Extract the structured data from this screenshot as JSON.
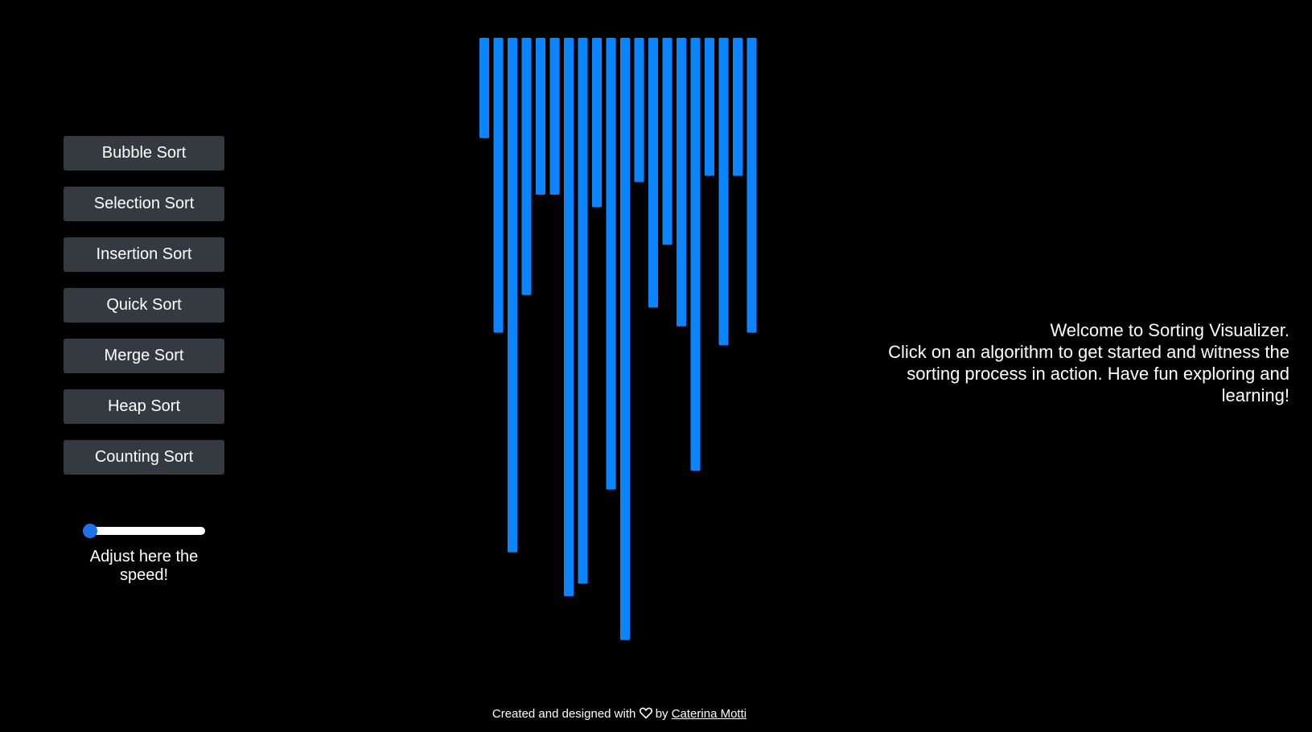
{
  "sidebar": {
    "buttons": [
      "Bubble Sort",
      "Selection Sort",
      "Insertion Sort",
      "Quick Sort",
      "Merge Sort",
      "Heap Sort",
      "Counting Sort"
    ]
  },
  "speed": {
    "label": "Adjust here the speed!",
    "value_fraction": 0.0
  },
  "welcome": {
    "line1": "Welcome to Sorting Visualizer.",
    "line2": "Click on an algorithm to get started and witness the sorting process in action. Have fun exploring and learning!"
  },
  "footer": {
    "prefix": "Created and designed with",
    "by": "by",
    "author": "Caterina Motti",
    "heart_icon": "heart-icon"
  },
  "colors": {
    "bar": "#0a84ff",
    "button_bg": "#343a40",
    "slider_thumb": "#1a73e8",
    "background": "#000000"
  },
  "bars": {
    "values": [
      16,
      47,
      82,
      41,
      25,
      25,
      89,
      87,
      27,
      72,
      96,
      23,
      43,
      33,
      46,
      69,
      22,
      49,
      22,
      47
    ],
    "max": 100
  }
}
